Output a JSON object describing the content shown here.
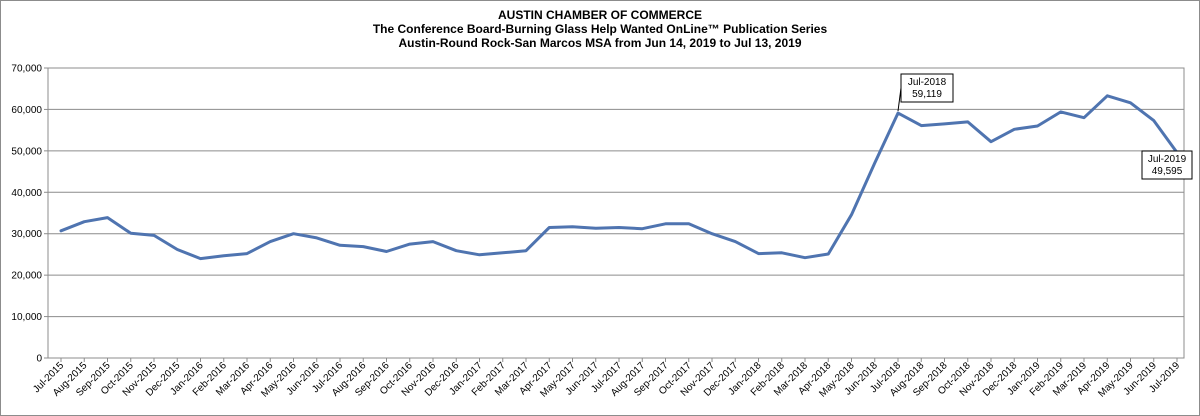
{
  "titles": {
    "line1": "AUSTIN CHAMBER  OF COMMERCE",
    "line2": "The Conference Board-Burning  Glass Help Wanted OnLine™ Publication  Series",
    "line3": "Austin-Round  Rock-San Marcos MSA from Jun 14, 2019 to Jul 13, 2019"
  },
  "chart_data": {
    "type": "line",
    "title": "AUSTIN CHAMBER  OF COMMERCE",
    "xlabel": "",
    "ylabel": "",
    "ylim": [
      0,
      70000
    ],
    "y_ticks": [
      "0",
      "10,000",
      "20,000",
      "30,000",
      "40,000",
      "50,000",
      "60,000",
      "70,000"
    ],
    "grid": true,
    "line_color": "#4f74b0",
    "categories": [
      "Jul-2015",
      "Aug-2015",
      "Sep-2015",
      "Oct-2015",
      "Nov-2015",
      "Dec-2015",
      "Jan-2016",
      "Feb-2016",
      "Mar-2016",
      "Apr-2016",
      "May-2016",
      "Jun-2016",
      "Jul-2016",
      "Aug-2016",
      "Sep-2016",
      "Oct-2016",
      "Nov-2016",
      "Dec-2016",
      "Jan-2017",
      "Feb-2017",
      "Mar-2017",
      "Apr-2017",
      "May-2017",
      "Jun-2017",
      "Jul-2017",
      "Aug-2017",
      "Sep-2017",
      "Oct-2017",
      "Nov-2017",
      "Dec-2017",
      "Jan-2018",
      "Feb-2018",
      "Mar-2018",
      "Apr-2018",
      "May-2018",
      "Jun-2018",
      "Jul-2018",
      "Aug-2018",
      "Sep-2018",
      "Oct-2018",
      "Nov-2018",
      "Dec-2018",
      "Jan-2019",
      "Feb-2019",
      "Mar-2019",
      "Apr-2019",
      "May-2019",
      "Jun-2019",
      "Jul-2019"
    ],
    "values": [
      30700,
      32900,
      33900,
      30100,
      29600,
      26200,
      24000,
      24700,
      25200,
      28100,
      30000,
      29000,
      27200,
      26900,
      25700,
      27500,
      28100,
      25900,
      24900,
      25400,
      25900,
      31500,
      31700,
      31300,
      31500,
      31200,
      32400,
      32400,
      30000,
      28100,
      25200,
      25400,
      24200,
      25100,
      34600,
      47100,
      59119,
      56100,
      56500,
      57000,
      52200,
      55200,
      56000,
      59400,
      58000,
      63300,
      61600,
      57300,
      49595
    ],
    "annotations": [
      {
        "category": "Jul-2018",
        "label": "Jul-2018",
        "value_label": "59,119"
      },
      {
        "category": "Jul-2019",
        "label": "Jul-2019",
        "value_label": "49,595"
      }
    ]
  }
}
